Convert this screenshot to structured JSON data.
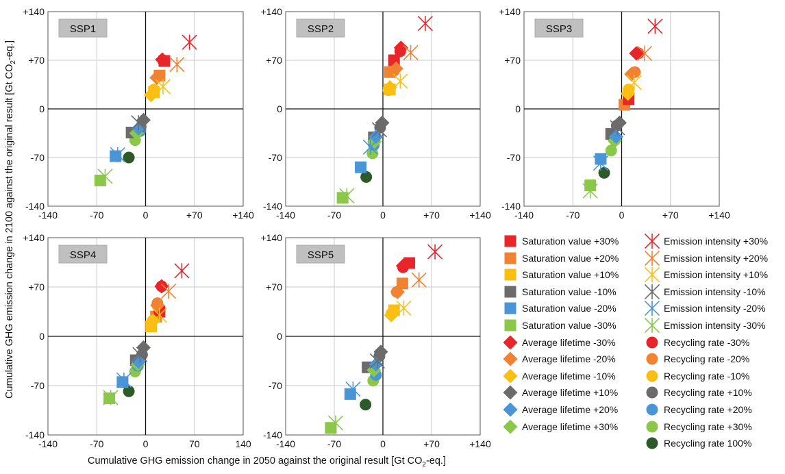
{
  "chart_data": {
    "type": "scatter",
    "xlabel_parts": [
      "Cumulative GHG emission change in 2050 against the original result [Gt CO",
      "2",
      "-eq.]"
    ],
    "ylabel_parts": [
      "Cumulative GHG emission change in 2100 against the original result  [Gt CO",
      "2",
      "-eq.]"
    ],
    "xlim": [
      -140,
      140
    ],
    "ylim": [
      -140,
      140
    ],
    "tick_labels": [
      "-140",
      "-70",
      "0",
      "+70",
      "+140"
    ],
    "x_tick_labels": [
      "-140",
      "-70",
      "0",
      "+70",
      "+140"
    ],
    "y_tick_labels": [
      "+140",
      "+70",
      "0",
      "-70",
      "-140"
    ],
    "x_tick_labels_alt": [
      "-140",
      "-70",
      "0",
      "70",
      "140"
    ],
    "grid": true,
    "legend_position": "bottom-right",
    "series": [
      {
        "name": "Saturation value +30%",
        "marker": "square",
        "color": "#e8262a"
      },
      {
        "name": "Saturation value +20%",
        "marker": "square",
        "color": "#f08232"
      },
      {
        "name": "Saturation value +10%",
        "marker": "square",
        "color": "#fbbf14"
      },
      {
        "name": "Saturation value -10%",
        "marker": "square",
        "color": "#6b6b6b"
      },
      {
        "name": "Saturation value -20%",
        "marker": "square",
        "color": "#4a95d6"
      },
      {
        "name": "Saturation value -30%",
        "marker": "square",
        "color": "#8bc84a"
      },
      {
        "name": "Average lifetime -30%",
        "marker": "diamond",
        "color": "#e8262a"
      },
      {
        "name": "Average lifetime -20%",
        "marker": "diamond",
        "color": "#f08232"
      },
      {
        "name": "Average lifetime -10%",
        "marker": "diamond",
        "color": "#fbbf14"
      },
      {
        "name": "Average lifetime +10%",
        "marker": "diamond",
        "color": "#6b6b6b"
      },
      {
        "name": "Average lifetime +20%",
        "marker": "diamond",
        "color": "#4a95d6"
      },
      {
        "name": "Average lifetime +30%",
        "marker": "diamond",
        "color": "#8bc84a"
      },
      {
        "name": "Emission intensity +30%",
        "marker": "star",
        "color": "#e8262a"
      },
      {
        "name": "Emission intensity +20%",
        "marker": "star",
        "color": "#f08232"
      },
      {
        "name": "Emission intensity +10%",
        "marker": "star",
        "color": "#fbbf14"
      },
      {
        "name": "Emission intensity -10%",
        "marker": "star",
        "color": "#6b6b6b"
      },
      {
        "name": "Emission intensity -20%",
        "marker": "star",
        "color": "#4a95d6"
      },
      {
        "name": "Emission intensity -30%",
        "marker": "star",
        "color": "#8bc84a"
      },
      {
        "name": "Recycling rate -30%",
        "marker": "circle",
        "color": "#e8262a"
      },
      {
        "name": "Recycling rate -20%",
        "marker": "circle",
        "color": "#f08232"
      },
      {
        "name": "Recycling rate -10%",
        "marker": "circle",
        "color": "#fbbf14"
      },
      {
        "name": "Recycling rate +10%",
        "marker": "circle",
        "color": "#6b6b6b"
      },
      {
        "name": "Recycling rate +20%",
        "marker": "circle",
        "color": "#4a95d6"
      },
      {
        "name": "Recycling rate +30%",
        "marker": "circle",
        "color": "#8bc84a"
      },
      {
        "name": "Recycling rate 100%",
        "marker": "circle",
        "color": "#2e5a2a"
      }
    ],
    "panels": [
      {
        "label": "SSP1",
        "points": {
          "Saturation value +30%": [
            27,
            69
          ],
          "Saturation value +20%": [
            20,
            48
          ],
          "Saturation value +10%": [
            12,
            24
          ],
          "Saturation value -10%": [
            -20,
            -34
          ],
          "Saturation value -20%": [
            -43,
            -68
          ],
          "Saturation value -30%": [
            -65,
            -103
          ],
          "Average lifetime -30%": [
            24,
            71
          ],
          "Average lifetime -20%": [
            16,
            45
          ],
          "Average lifetime -10%": [
            8,
            20
          ],
          "Average lifetime +10%": [
            -3,
            -16
          ],
          "Average lifetime +20%": [
            -10,
            -28
          ],
          "Average lifetime +30%": [
            -13,
            -35
          ],
          "Emission intensity +30%": [
            63,
            96
          ],
          "Emission intensity +20%": [
            45,
            64
          ],
          "Emission intensity +10%": [
            25,
            32
          ],
          "Emission intensity -10%": [
            -10,
            -20
          ],
          "Emission intensity -20%": [
            -40,
            -66
          ],
          "Emission intensity -30%": [
            -58,
            -97
          ],
          "Recycling rate -30%": [
            25,
            70
          ],
          "Recycling rate -20%": [
            20,
            48
          ],
          "Recycling rate -10%": [
            12,
            28
          ],
          "Recycling rate +10%": [
            -7,
            -26
          ],
          "Recycling rate +20%": [
            -8,
            -32
          ],
          "Recycling rate +30%": [
            -15,
            -45
          ],
          "Recycling rate 100%": [
            -24,
            -70
          ]
        }
      },
      {
        "label": "SSP2",
        "points": {
          "Saturation value +30%": [
            16,
            70
          ],
          "Saturation value +20%": [
            10,
            53
          ],
          "Saturation value +10%": [
            10,
            28
          ],
          "Saturation value -10%": [
            -13,
            -41
          ],
          "Saturation value -20%": [
            -32,
            -84
          ],
          "Saturation value -30%": [
            -58,
            -128
          ],
          "Average lifetime -30%": [
            26,
            88
          ],
          "Average lifetime -20%": [
            19,
            58
          ],
          "Average lifetime -10%": [
            10,
            31
          ],
          "Average lifetime +10%": [
            -1,
            -20
          ],
          "Average lifetime +20%": [
            -10,
            -40
          ],
          "Average lifetime +30%": [
            -12,
            -47
          ],
          "Emission intensity +30%": [
            61,
            123
          ],
          "Emission intensity +20%": [
            40,
            81
          ],
          "Emission intensity +10%": [
            25,
            40
          ],
          "Emission intensity -10%": [
            -5,
            -30
          ],
          "Emission intensity -20%": [
            -18,
            -55
          ],
          "Emission intensity -30%": [
            -52,
            -125
          ],
          "Recycling rate -30%": [
            25,
            83
          ],
          "Recycling rate -20%": [
            16,
            55
          ],
          "Recycling rate -10%": [
            8,
            27
          ],
          "Recycling rate +10%": [
            -4,
            -27
          ],
          "Recycling rate +20%": [
            -13,
            -52
          ],
          "Recycling rate +30%": [
            -15,
            -64
          ],
          "Recycling rate 100%": [
            -24,
            -98
          ]
        }
      },
      {
        "label": "SSP3",
        "points": {
          "Saturation value +30%": [
            10,
            14
          ],
          "Saturation value +20%": [
            4,
            6
          ],
          "Saturation value +10%": [
            10,
            20
          ],
          "Saturation value -10%": [
            -15,
            -36
          ],
          "Saturation value -20%": [
            -30,
            -72
          ],
          "Saturation value -30%": [
            -45,
            -110
          ],
          "Average lifetime -30%": [
            21,
            80
          ],
          "Average lifetime -20%": [
            14,
            50
          ],
          "Average lifetime -10%": [
            9,
            22
          ],
          "Average lifetime +10%": [
            -3,
            -20
          ],
          "Average lifetime +20%": [
            -8,
            -40
          ],
          "Average lifetime +30%": [
            -10,
            -46
          ],
          "Emission intensity +30%": [
            48,
            119
          ],
          "Emission intensity +20%": [
            33,
            80
          ],
          "Emission intensity +10%": [
            18,
            38
          ],
          "Emission intensity -10%": [
            -6,
            -27
          ],
          "Emission intensity -20%": [
            -30,
            -78
          ],
          "Emission intensity -30%": [
            -45,
            -118
          ],
          "Recycling rate -30%": [
            24,
            80
          ],
          "Recycling rate -20%": [
            19,
            53
          ],
          "Recycling rate -10%": [
            10,
            28
          ],
          "Recycling rate +10%": [
            -7,
            -24
          ],
          "Recycling rate +20%": [
            -10,
            -45
          ],
          "Recycling rate +30%": [
            -15,
            -60
          ],
          "Recycling rate 100%": [
            -25,
            -92
          ]
        }
      },
      {
        "label": "SSP4",
        "points": {
          "Saturation value +30%": [
            20,
            35
          ],
          "Saturation value +20%": [
            15,
            28
          ],
          "Saturation value +10%": [
            8,
            14
          ],
          "Saturation value -10%": [
            -14,
            -34
          ],
          "Saturation value -20%": [
            -33,
            -65
          ],
          "Saturation value -30%": [
            -52,
            -88
          ],
          "Average lifetime -30%": [
            23,
            71
          ],
          "Average lifetime -20%": [
            17,
            44
          ],
          "Average lifetime -10%": [
            11,
            22
          ],
          "Average lifetime +10%": [
            -3,
            -16
          ],
          "Average lifetime +20%": [
            -10,
            -36
          ],
          "Average lifetime +30%": [
            -11,
            -40
          ],
          "Emission intensity +30%": [
            52,
            93
          ],
          "Emission intensity +20%": [
            33,
            64
          ],
          "Emission intensity +10%": [
            20,
            30
          ],
          "Emission intensity -10%": [
            -8,
            -26
          ],
          "Emission intensity -20%": [
            -31,
            -62
          ],
          "Emission intensity -30%": [
            -50,
            -87
          ],
          "Recycling rate -30%": [
            23,
            71
          ],
          "Recycling rate -20%": [
            17,
            47
          ],
          "Recycling rate -10%": [
            10,
            22
          ],
          "Recycling rate +10%": [
            -5,
            -26
          ],
          "Recycling rate +20%": [
            -11,
            -42
          ],
          "Recycling rate +30%": [
            -15,
            -50
          ],
          "Recycling rate 100%": [
            -24,
            -78
          ]
        }
      },
      {
        "label": "SSP5",
        "points": {
          "Saturation value +30%": [
            38,
            104
          ],
          "Saturation value +20%": [
            28,
            75
          ],
          "Saturation value +10%": [
            16,
            37
          ],
          "Saturation value -10%": [
            -22,
            -44
          ],
          "Saturation value -20%": [
            -47,
            -82
          ],
          "Saturation value -30%": [
            -75,
            -130
          ],
          "Average lifetime -30%": [
            29,
            100
          ],
          "Average lifetime -20%": [
            21,
            63
          ],
          "Average lifetime -10%": [
            12,
            30
          ],
          "Average lifetime +10%": [
            -3,
            -22
          ],
          "Average lifetime +20%": [
            -10,
            -40
          ],
          "Average lifetime +30%": [
            -13,
            -48
          ],
          "Emission intensity +30%": [
            75,
            120
          ],
          "Emission intensity +20%": [
            52,
            80
          ],
          "Emission intensity +10%": [
            30,
            40
          ],
          "Emission intensity -10%": [
            -8,
            -35
          ],
          "Emission intensity -20%": [
            -43,
            -75
          ],
          "Emission intensity -30%": [
            -68,
            -123
          ],
          "Recycling rate -30%": [
            29,
            98
          ],
          "Recycling rate -20%": [
            20,
            63
          ],
          "Recycling rate -10%": [
            12,
            32
          ],
          "Recycling rate +10%": [
            -5,
            -28
          ],
          "Recycling rate +20%": [
            -10,
            -55
          ],
          "Recycling rate +30%": [
            -14,
            -63
          ],
          "Recycling rate 100%": [
            -25,
            -97
          ]
        }
      }
    ]
  }
}
